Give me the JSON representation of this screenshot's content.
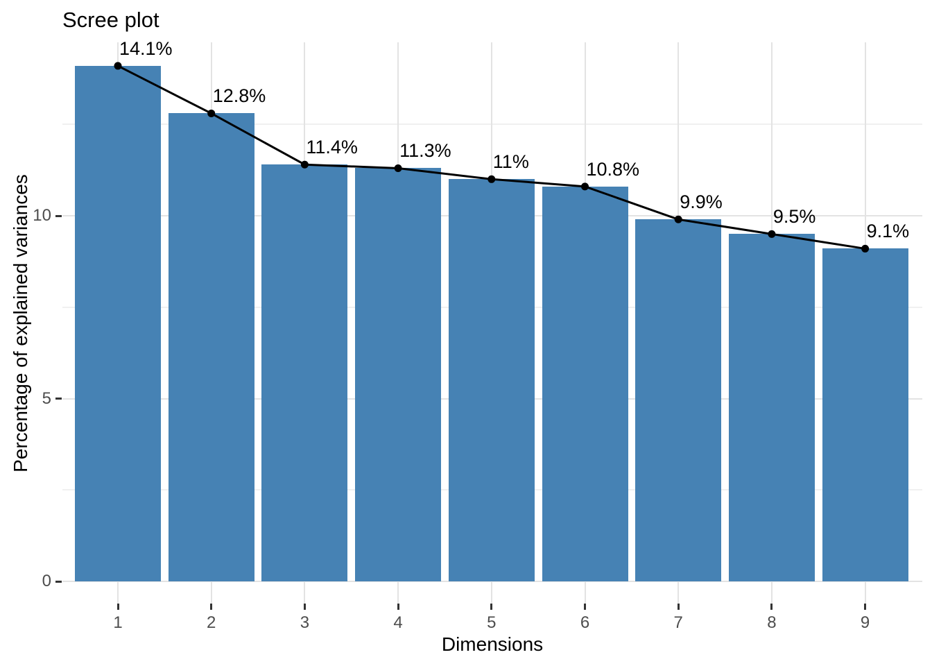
{
  "chart_data": {
    "type": "bar",
    "subtype": "scree-plot-with-line-overlay",
    "title": "Scree plot",
    "xlabel": "Dimensions",
    "ylabel": "Percentage of explained variances",
    "categories": [
      "1",
      "2",
      "3",
      "4",
      "5",
      "6",
      "7",
      "8",
      "9"
    ],
    "values": [
      14.1,
      12.8,
      11.4,
      11.3,
      11.0,
      10.8,
      9.9,
      9.5,
      9.1
    ],
    "point_labels": [
      "14.1%",
      "12.8%",
      "11.4%",
      "11.3%",
      "11%",
      "10.8%",
      "9.9%",
      "9.5%",
      "9.1%"
    ],
    "y_ticks": [
      0,
      5,
      10
    ],
    "y_tick_labels": [
      "0",
      "5",
      "10"
    ],
    "y_minor_ticks": [
      2.5,
      7.5,
      12.5
    ],
    "ylim": [
      -0.6,
      14.75
    ],
    "grid": "major-and-minor-horizontal, major-vertical-at-categories",
    "legend": "none",
    "colors": {
      "bar_fill": "#4682B4",
      "line": "#000000",
      "point": "#000000",
      "label_text": "#000000",
      "grid_major": "#e3e3e3",
      "grid_minor": "#f0f0f0",
      "tick_mark": "#333333",
      "tick_label": "#4d4d4d",
      "background": "#ffffff"
    }
  }
}
